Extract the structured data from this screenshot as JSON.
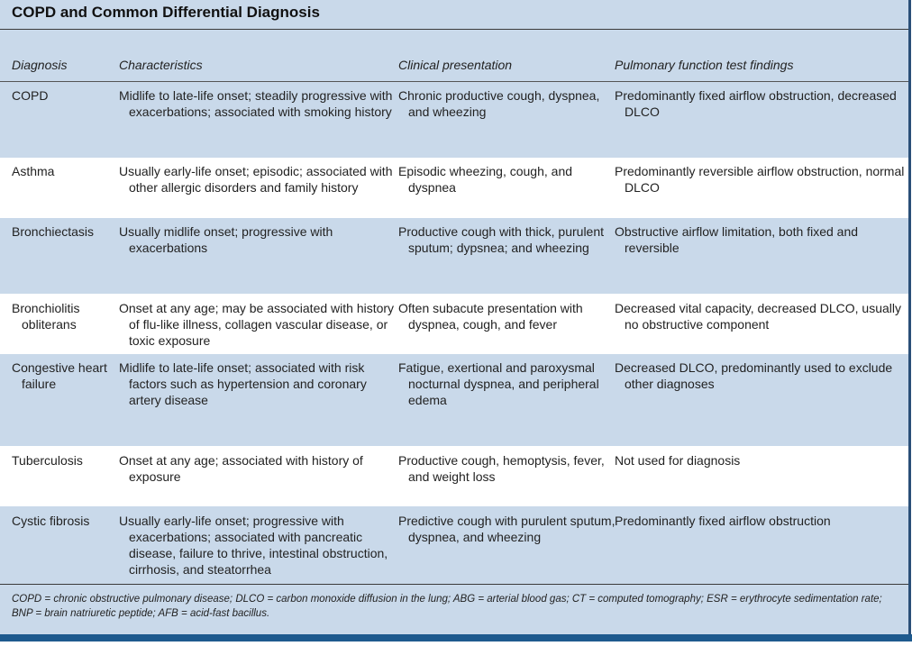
{
  "title": "COPD and Common Differential Diagnosis",
  "headers": {
    "diagnosis": "Diagnosis",
    "characteristics": "Characteristics",
    "clinical": "Clinical presentation",
    "pft": "Pulmonary function test findings"
  },
  "rows": [
    {
      "diagnosis": "COPD",
      "characteristics": "Midlife to late-life onset; steadily progressive with exacerbations; associated with smoking history",
      "clinical": "Chronic productive cough, dyspnea, and wheezing",
      "pft": "Predominantly fixed airflow obstruction, decreased DLCO"
    },
    {
      "diagnosis": "Asthma",
      "characteristics": "Usually early-life onset; episodic; associated with other allergic disorders and family history",
      "clinical": "Episodic wheezing, cough, and dyspnea",
      "pft": "Predominantly reversible airflow obstruction, normal DLCO"
    },
    {
      "diagnosis": "Bronchiectasis",
      "characteristics": "Usually midlife onset; progressive with exacerbations",
      "clinical": "Productive cough with thick, purulent sputum; dypsnea; and wheezing",
      "pft": "Obstructive airflow limitation, both fixed and reversible"
    },
    {
      "diagnosis": "Bronchiolitis obliterans",
      "characteristics": "Onset at any age; may be associated with history of flu-like illness, collagen vascular disease, or toxic exposure",
      "clinical": "Often subacute presentation with dyspnea, cough, and fever",
      "pft": "Decreased vital capacity, decreased DLCO, usually no obstructive component"
    },
    {
      "diagnosis": "Congestive heart failure",
      "characteristics": "Midlife to late-life onset; associated with risk factors such as hypertension and coronary artery disease",
      "clinical": "Fatigue, exertional and paroxysmal nocturnal dyspnea, and peripheral edema",
      "pft": "Decreased DLCO, predominantly used to exclude other diagnoses"
    },
    {
      "diagnosis": "Tuberculosis",
      "characteristics": "Onset at any age; associated with history of exposure",
      "clinical": "Productive cough, hemoptysis, fever, and weight loss",
      "pft": "Not used for diagnosis"
    },
    {
      "diagnosis": "Cystic fibrosis",
      "characteristics": "Usually early-life onset; progressive with exacerbations; associated with pancreatic disease, failure to thrive, intestinal obstruction, cirrhosis, and steatorrhea",
      "clinical": "Predictive cough with purulent sputum, dyspnea, and wheezing",
      "pft": "Predominantly fixed airflow obstruction"
    }
  ],
  "footnote": "COPD = chronic obstructive pulmonary disease; DLCO = carbon monoxide diffusion in the lung; ABG = arterial blood gas; CT = computed tomography; ESR = erythrocyte sedimentation rate; BNP = brain natriuretic peptide; AFB = acid-fast bacillus.",
  "colors": {
    "row_blue": "#c9d9ea",
    "row_white": "#ffffff",
    "accent_bar": "#1e5a8e"
  }
}
